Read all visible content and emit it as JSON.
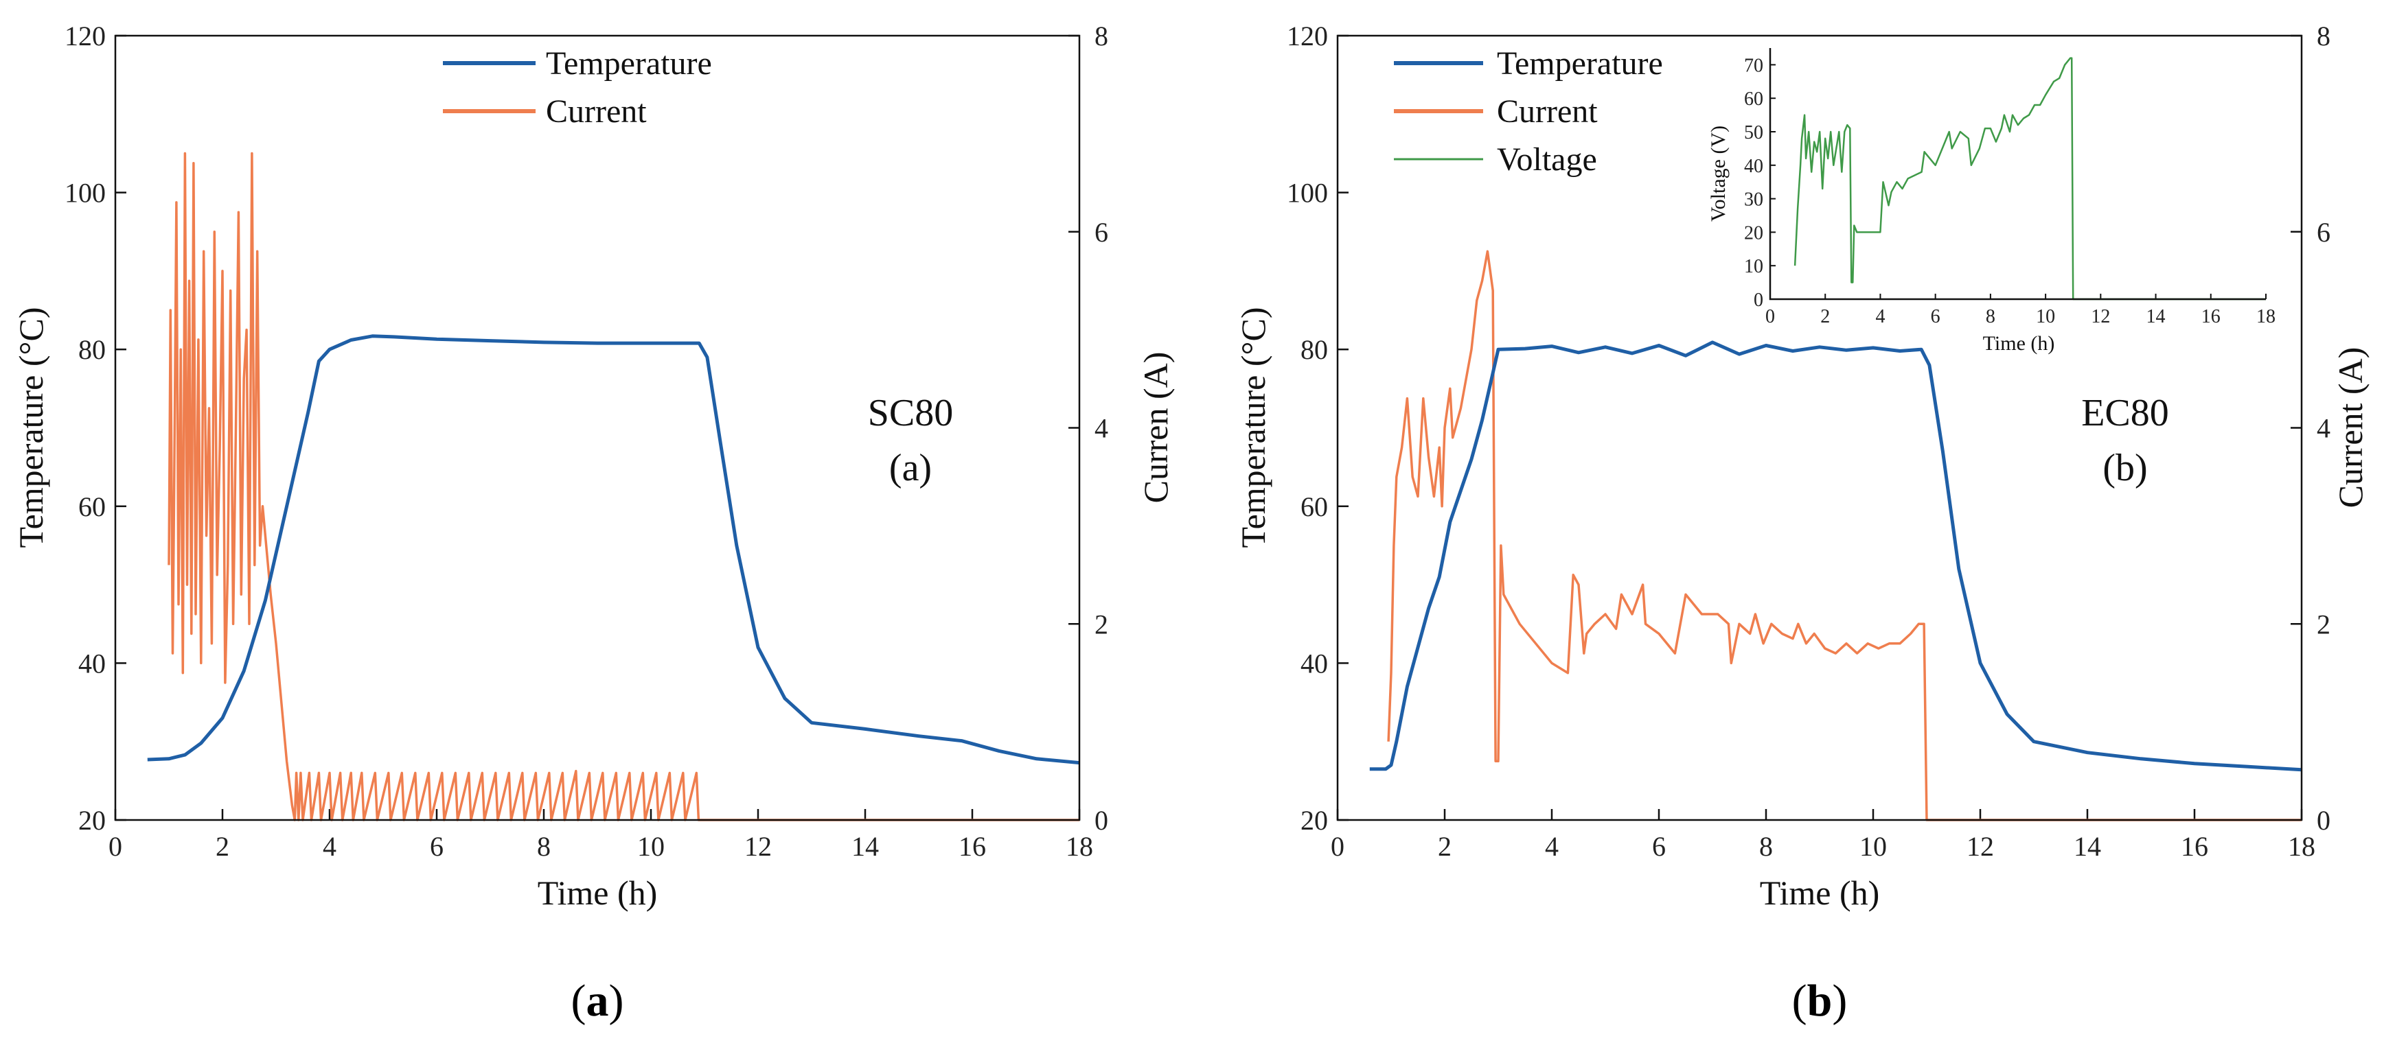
{
  "figure_captions": [
    {
      "open": "(",
      "letter": "a",
      "close": ")"
    },
    {
      "open": "(",
      "letter": "b",
      "close": ")"
    }
  ],
  "chart_data": [
    {
      "type": "line",
      "panel": "a",
      "annotation": [
        "SC80",
        "(a)"
      ],
      "xlabel": "Time (h)",
      "ylabel": "Temperature (°C)",
      "y2label": "Curren (A)",
      "xlim": [
        0,
        18
      ],
      "ylim": [
        20,
        120
      ],
      "y2lim": [
        0,
        8
      ],
      "xticks": [
        0,
        2,
        4,
        6,
        8,
        10,
        12,
        14,
        16,
        18
      ],
      "yticks": [
        20,
        40,
        60,
        80,
        100,
        120
      ],
      "y2ticks": [
        0,
        2,
        4,
        6,
        8
      ],
      "legend_position": "top-center",
      "series": [
        {
          "name": "Temperature",
          "axis": "left",
          "color": "#1f5fa6",
          "x": [
            0.6,
            1.0,
            1.3,
            1.6,
            2.0,
            2.4,
            2.8,
            3.2,
            3.6,
            3.8,
            4.0,
            4.4,
            4.8,
            5.2,
            6.0,
            7.0,
            8.0,
            9.0,
            10.0,
            10.9,
            11.05,
            11.3,
            11.6,
            12.0,
            12.5,
            13.0,
            14.0,
            15.0,
            15.8,
            16.5,
            17.2,
            18.0
          ],
          "values": [
            27.7,
            27.8,
            28.3,
            29.8,
            33,
            39,
            48,
            60,
            72,
            78.5,
            80,
            81.2,
            81.7,
            81.6,
            81.3,
            81.1,
            80.9,
            80.8,
            80.8,
            80.8,
            79,
            68,
            55,
            42,
            35.5,
            32.4,
            31.6,
            30.7,
            30.1,
            28.8,
            27.8,
            27.3
          ]
        },
        {
          "name": "Current",
          "axis": "right",
          "color": "#ef7e4e",
          "x": [
            1.0,
            1.03,
            1.07,
            1.1,
            1.14,
            1.18,
            1.22,
            1.26,
            1.3,
            1.34,
            1.38,
            1.42,
            1.46,
            1.5,
            1.55,
            1.6,
            1.65,
            1.7,
            1.75,
            1.8,
            1.85,
            1.9,
            1.95,
            2.0,
            2.05,
            2.1,
            2.15,
            2.2,
            2.25,
            2.3,
            2.35,
            2.4,
            2.45,
            2.5,
            2.55,
            2.6,
            2.65,
            2.7,
            2.75,
            2.8,
            2.85,
            2.9,
            3.0,
            3.1,
            3.2,
            3.3,
            3.35,
            3.38,
            3.42,
            3.46,
            3.5,
            3.62,
            3.66,
            3.8,
            3.84,
            4.0,
            4.04,
            4.2,
            4.24,
            4.4,
            4.44,
            4.6,
            4.64,
            4.85,
            4.89,
            5.1,
            5.14,
            5.35,
            5.39,
            5.6,
            5.64,
            5.85,
            5.89,
            6.1,
            6.14,
            6.35,
            6.39,
            6.6,
            6.64,
            6.85,
            6.89,
            7.1,
            7.14,
            7.35,
            7.39,
            7.6,
            7.64,
            7.85,
            7.89,
            8.1,
            8.14,
            8.35,
            8.39,
            8.6,
            8.64,
            8.85,
            8.89,
            9.1,
            9.14,
            9.35,
            9.39,
            9.6,
            9.64,
            9.85,
            9.89,
            10.1,
            10.14,
            10.35,
            10.39,
            10.6,
            10.64,
            10.85,
            10.89,
            11.0,
            14.0,
            18.0
          ],
          "values": [
            2.6,
            5.2,
            1.7,
            3.5,
            6.3,
            2.2,
            4.8,
            1.5,
            6.8,
            2.4,
            5.5,
            1.9,
            6.7,
            2.1,
            4.9,
            1.6,
            5.8,
            2.9,
            4.2,
            1.8,
            6.0,
            2.5,
            3.8,
            5.6,
            1.4,
            2.6,
            5.4,
            2.0,
            4.0,
            6.2,
            2.3,
            4.5,
            5.0,
            2.0,
            6.8,
            2.6,
            5.8,
            2.8,
            3.2,
            2.9,
            2.6,
            2.3,
            1.8,
            1.2,
            0.6,
            0.15,
            0.0,
            0.48,
            0.0,
            0.48,
            0.0,
            0.48,
            0.0,
            0.48,
            0.0,
            0.48,
            0.0,
            0.48,
            0.0,
            0.48,
            0.0,
            0.48,
            0.0,
            0.48,
            0.0,
            0.48,
            0.0,
            0.48,
            0.0,
            0.48,
            0.0,
            0.48,
            0.0,
            0.48,
            0.0,
            0.48,
            0.0,
            0.48,
            0.0,
            0.48,
            0.0,
            0.48,
            0.0,
            0.48,
            0.0,
            0.48,
            0.0,
            0.48,
            0.0,
            0.48,
            0.0,
            0.48,
            0.0,
            0.5,
            0.0,
            0.48,
            0.0,
            0.48,
            0.0,
            0.48,
            0.0,
            0.48,
            0.0,
            0.48,
            0.0,
            0.48,
            0.0,
            0.48,
            0.0,
            0.48,
            0.0,
            0.48,
            0.0,
            0.0,
            0.0,
            0.0
          ]
        }
      ]
    },
    {
      "type": "line",
      "panel": "b",
      "annotation": [
        "EC80",
        "(b)"
      ],
      "xlabel": "Time (h)",
      "ylabel": "Temperature (°C)",
      "y2label": "Current (A)",
      "xlim": [
        0,
        18
      ],
      "ylim": [
        20,
        120
      ],
      "y2lim": [
        0,
        8
      ],
      "xticks": [
        0,
        2,
        4,
        6,
        8,
        10,
        12,
        14,
        16,
        18
      ],
      "yticks": [
        20,
        40,
        60,
        80,
        100,
        120
      ],
      "y2ticks": [
        0,
        2,
        4,
        6,
        8
      ],
      "legend_position": "top-left",
      "legend_extra": "Voltage",
      "series": [
        {
          "name": "Temperature",
          "axis": "left",
          "color": "#1f5fa6",
          "x": [
            0.6,
            0.9,
            1.0,
            1.1,
            1.3,
            1.5,
            1.7,
            1.9,
            2.1,
            2.3,
            2.5,
            2.7,
            2.9,
            3.0,
            3.5,
            4.0,
            4.5,
            5.0,
            5.5,
            6.0,
            6.5,
            7.0,
            7.5,
            8.0,
            8.5,
            9.0,
            9.5,
            10.0,
            10.5,
            10.9,
            11.05,
            11.3,
            11.6,
            12.0,
            12.5,
            13.0,
            14.0,
            15.0,
            16.0,
            17.0,
            18.0
          ],
          "values": [
            26.5,
            26.5,
            27.0,
            30,
            37,
            42,
            47,
            51,
            58,
            62,
            66,
            71,
            77,
            80,
            80.1,
            80.4,
            79.6,
            80.3,
            79.5,
            80.5,
            79.2,
            80.9,
            79.4,
            80.5,
            79.8,
            80.3,
            79.9,
            80.2,
            79.8,
            80.0,
            78,
            67,
            52,
            40,
            33.5,
            30.0,
            28.6,
            27.8,
            27.2,
            26.8,
            26.4
          ]
        },
        {
          "name": "Current",
          "axis": "right",
          "color": "#ef7e4e",
          "x": [
            0.95,
            1.0,
            1.05,
            1.1,
            1.2,
            1.3,
            1.4,
            1.5,
            1.6,
            1.7,
            1.8,
            1.9,
            1.95,
            2.0,
            2.1,
            2.15,
            2.2,
            2.3,
            2.4,
            2.5,
            2.6,
            2.7,
            2.8,
            2.9,
            2.95,
            3.0,
            3.05,
            3.1,
            3.2,
            3.4,
            3.7,
            4.0,
            4.3,
            4.4,
            4.5,
            4.6,
            4.65,
            4.8,
            5.0,
            5.2,
            5.3,
            5.5,
            5.7,
            5.75,
            6.0,
            6.3,
            6.5,
            6.8,
            7.1,
            7.3,
            7.35,
            7.5,
            7.7,
            7.8,
            7.95,
            8.1,
            8.3,
            8.5,
            8.6,
            8.75,
            8.9,
            9.1,
            9.3,
            9.5,
            9.7,
            9.9,
            10.1,
            10.3,
            10.5,
            10.7,
            10.85,
            10.95,
            11.0,
            14.0,
            18.0
          ],
          "values": [
            0.8,
            1.5,
            2.8,
            3.5,
            3.8,
            4.3,
            3.5,
            3.3,
            4.3,
            3.7,
            3.3,
            3.8,
            3.2,
            4.0,
            4.4,
            3.9,
            4.0,
            4.2,
            4.5,
            4.8,
            5.3,
            5.5,
            5.8,
            5.4,
            0.6,
            0.6,
            2.8,
            2.3,
            2.2,
            2.0,
            1.8,
            1.6,
            1.5,
            2.5,
            2.4,
            1.7,
            1.9,
            2.0,
            2.1,
            1.95,
            2.3,
            2.1,
            2.4,
            2.0,
            1.9,
            1.7,
            2.3,
            2.1,
            2.1,
            2.0,
            1.6,
            2.0,
            1.9,
            2.1,
            1.8,
            2.0,
            1.9,
            1.85,
            2.0,
            1.8,
            1.9,
            1.75,
            1.7,
            1.8,
            1.7,
            1.8,
            1.75,
            1.8,
            1.8,
            1.9,
            2.0,
            2.0,
            0.0,
            0.0,
            0.0
          ]
        }
      ],
      "inset": {
        "type": "line",
        "xlabel": "Time (h)",
        "ylabel": "Voltage (V)",
        "xlim": [
          0,
          18
        ],
        "ylim": [
          0,
          75
        ],
        "xticks": [
          0,
          2,
          4,
          6,
          8,
          10,
          12,
          14,
          16,
          18
        ],
        "yticks": [
          0,
          10,
          20,
          30,
          40,
          50,
          60,
          70
        ],
        "series": [
          {
            "name": "Voltage",
            "color": "#3f9a48",
            "x": [
              0.9,
              1.0,
              1.1,
              1.15,
              1.25,
              1.3,
              1.4,
              1.5,
              1.6,
              1.7,
              1.8,
              1.9,
              2.0,
              2.1,
              2.2,
              2.3,
              2.4,
              2.5,
              2.6,
              2.7,
              2.8,
              2.9,
              2.95,
              3.0,
              3.05,
              3.15,
              3.2,
              3.4,
              4.0,
              4.1,
              4.3,
              4.4,
              4.6,
              4.8,
              5.0,
              5.5,
              5.6,
              6.0,
              6.5,
              6.6,
              6.9,
              7.2,
              7.3,
              7.6,
              7.8,
              8.0,
              8.2,
              8.4,
              8.5,
              8.7,
              8.8,
              9.0,
              9.2,
              9.4,
              9.6,
              9.8,
              10.0,
              10.3,
              10.5,
              10.7,
              10.9,
              10.95,
              11.0,
              18.0
            ],
            "values": [
              10,
              27,
              40,
              48,
              55,
              42,
              50,
              38,
              47,
              44,
              50,
              33,
              48,
              42,
              50,
              40,
              45,
              50,
              38,
              50,
              52,
              51,
              5,
              5,
              22,
              20,
              20,
              20,
              20,
              35,
              28,
              32,
              35,
              33,
              36,
              38,
              44,
              40,
              50,
              45,
              50,
              48,
              40,
              45,
              51,
              51,
              47,
              51,
              55,
              50,
              55,
              52,
              54,
              55,
              58,
              58,
              61,
              65,
              66,
              70,
              72,
              72,
              0,
              0
            ]
          }
        ]
      }
    }
  ]
}
